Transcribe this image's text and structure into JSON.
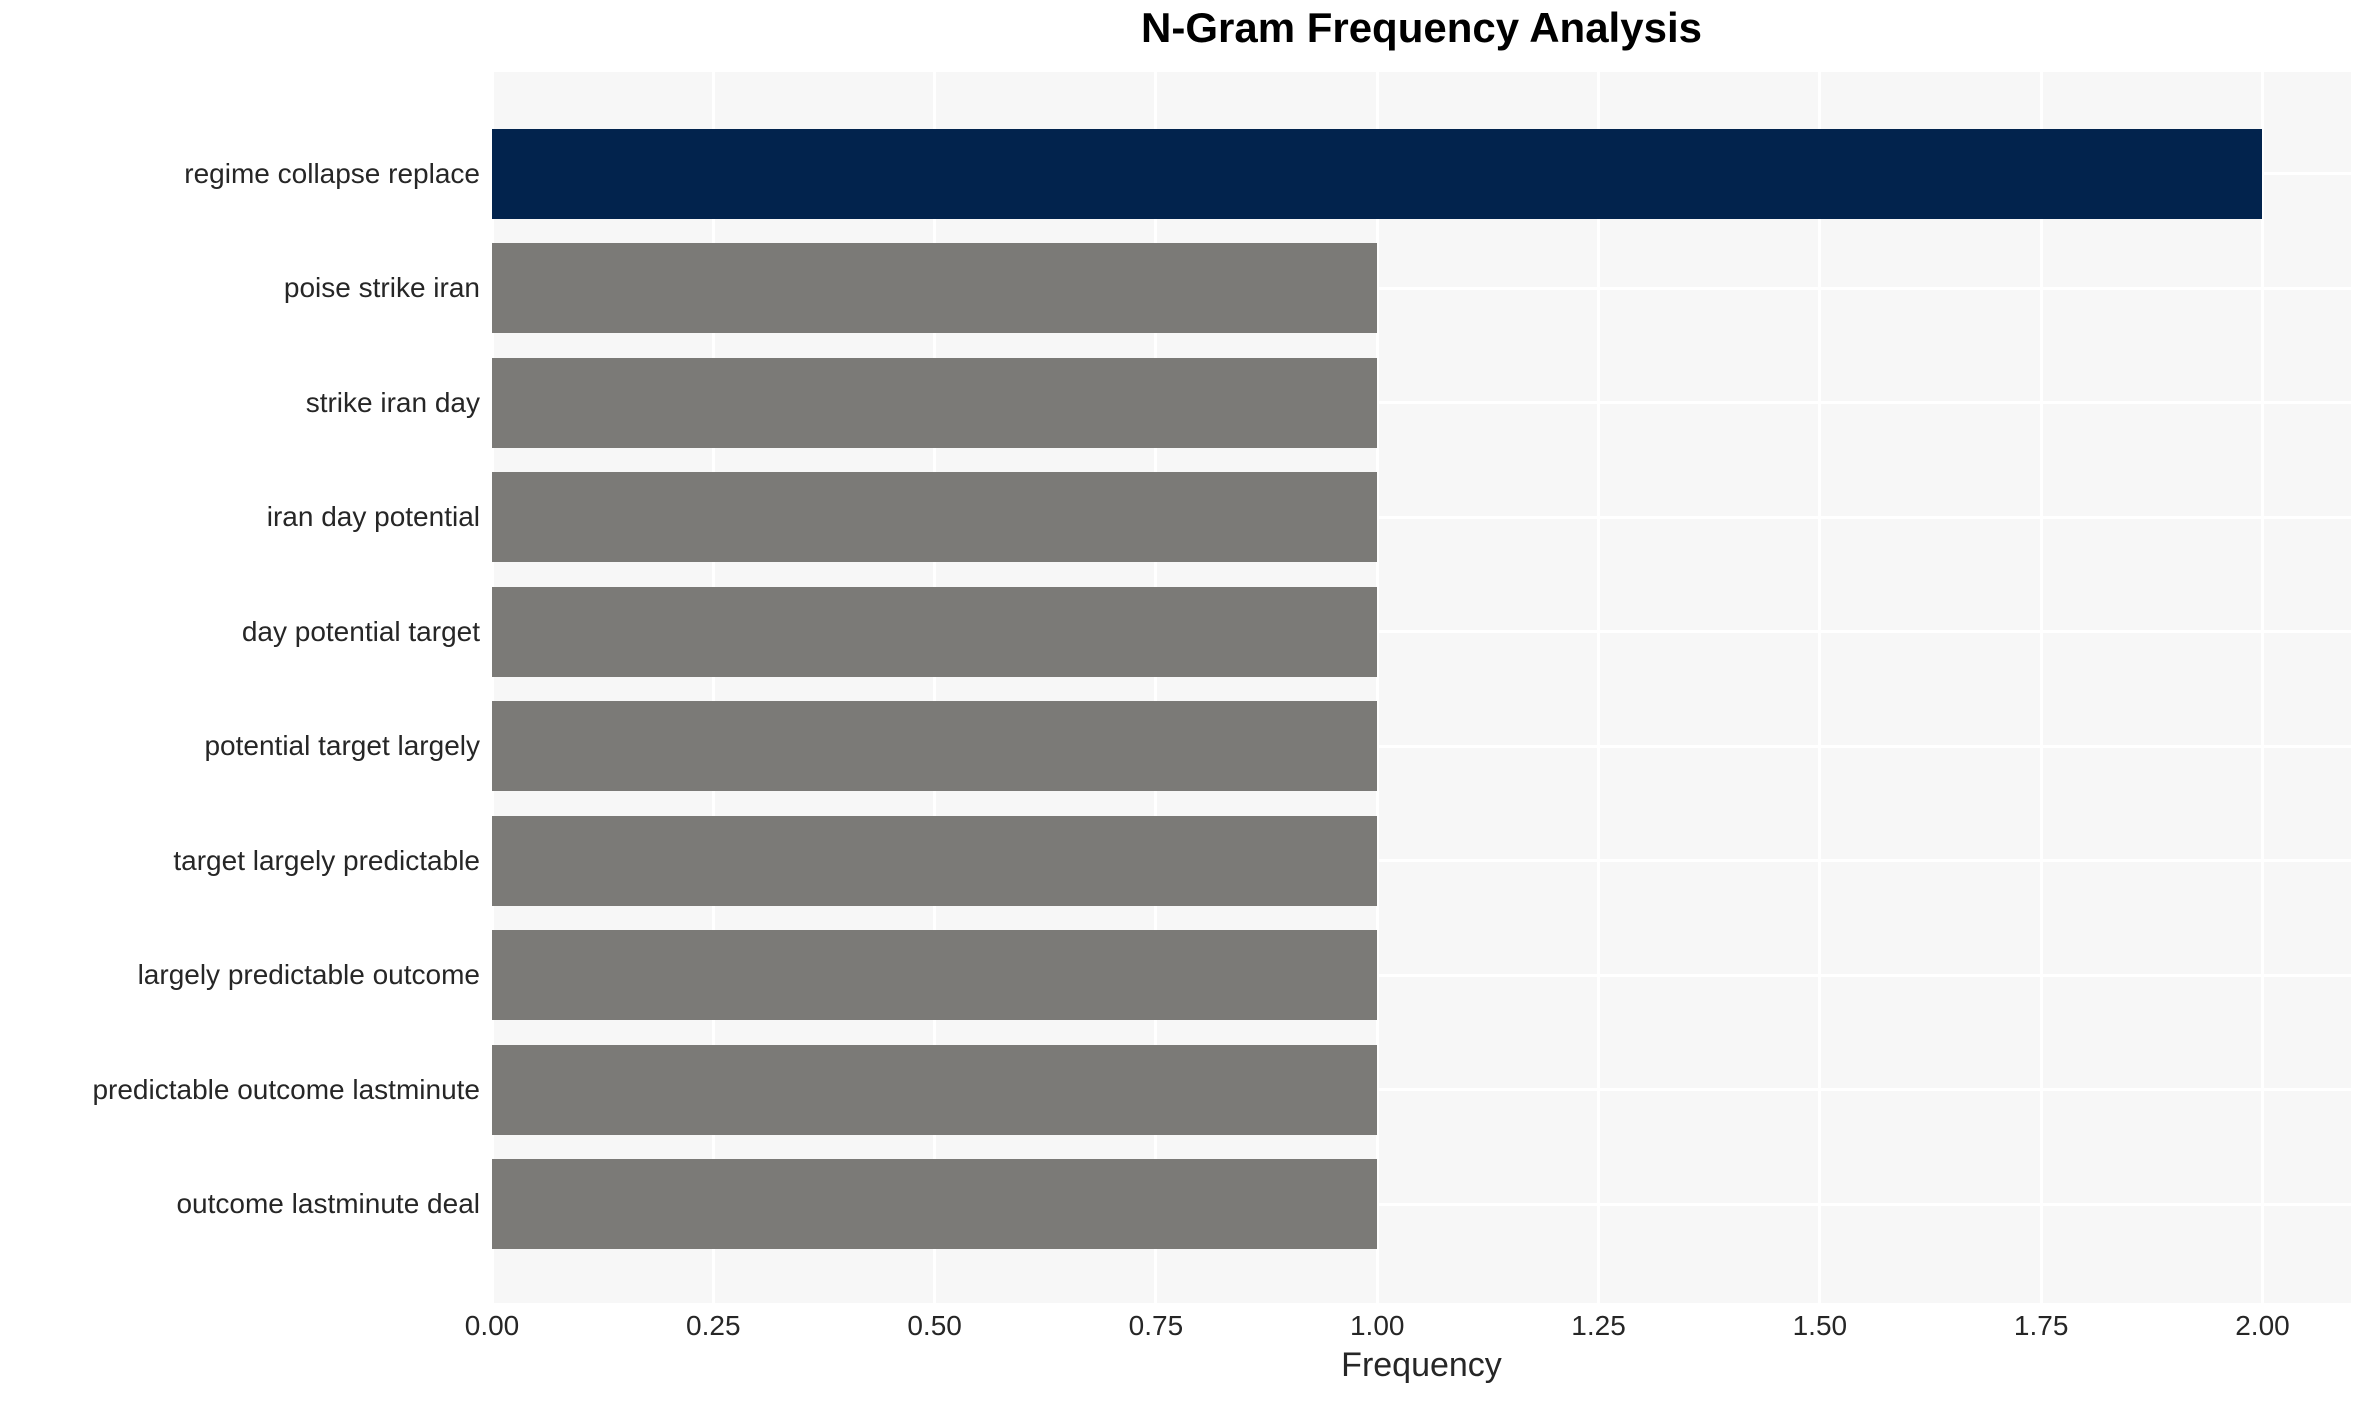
{
  "chart_data": {
    "type": "bar",
    "orientation": "horizontal",
    "title": "N-Gram Frequency Analysis",
    "xlabel": "Frequency",
    "ylabel": "",
    "categories": [
      "regime collapse replace",
      "poise strike iran",
      "strike iran day",
      "iran day potential",
      "day potential target",
      "potential target largely",
      "target largely predictable",
      "largely predictable outcome",
      "predictable outcome lastminute",
      "outcome lastminute deal"
    ],
    "values": [
      2,
      1,
      1,
      1,
      1,
      1,
      1,
      1,
      1,
      1
    ],
    "x_ticks": [
      "0.00",
      "0.25",
      "0.50",
      "0.75",
      "1.00",
      "1.25",
      "1.50",
      "1.75",
      "2.00"
    ],
    "xlim": [
      0,
      2.1
    ],
    "grid": true,
    "legend_position": "none",
    "bar_colors": [
      "#02234d",
      "#7b7a77",
      "#7b7a77",
      "#7b7a77",
      "#7b7a77",
      "#7b7a77",
      "#7b7a77",
      "#7b7a77",
      "#7b7a77",
      "#7b7a77"
    ],
    "colors": {
      "highlight_bar": "#02234d",
      "default_bar": "#7b7a77",
      "plot_background": "#f7f7f7",
      "gridline": "#ffffff",
      "tick_text": "#262626",
      "title_text": "#000000"
    }
  }
}
